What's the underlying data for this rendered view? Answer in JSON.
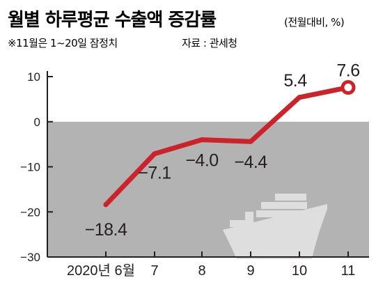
{
  "title": "월별 하루평균 수출액 증감률",
  "unit": "(전월대비, %)",
  "note": "※11월은 1~20일 잠정치",
  "source": "자료 : 관세청",
  "colors": {
    "line": "#cc2229",
    "negative_band": "#b3b3b3",
    "axis": "#231f20",
    "ship": "#dedede"
  },
  "chart_data": {
    "type": "line",
    "title": "월별 하루평균 수출액 증감률",
    "ylabel": "(전월대비, %)",
    "categories": [
      "2020년 6월",
      "7",
      "8",
      "9",
      "10",
      "11"
    ],
    "series": [
      {
        "values": [
          -18.4,
          -7.1,
          -4.0,
          -4.4,
          5.4,
          7.6
        ],
        "labels": [
          "−18.4",
          "−7.1",
          "−4.0",
          "−4.4",
          "5.4",
          "7.6"
        ]
      }
    ],
    "yticks": [
      10,
      0,
      -10,
      -20,
      -30
    ],
    "ytick_labels": [
      "10",
      "0",
      "−10",
      "−20",
      "−30"
    ],
    "ylim": [
      -30,
      10
    ],
    "grid": false,
    "negative_region_shaded": true,
    "last_point_marker": "hollow-circle",
    "decoration": "ship-icon"
  }
}
